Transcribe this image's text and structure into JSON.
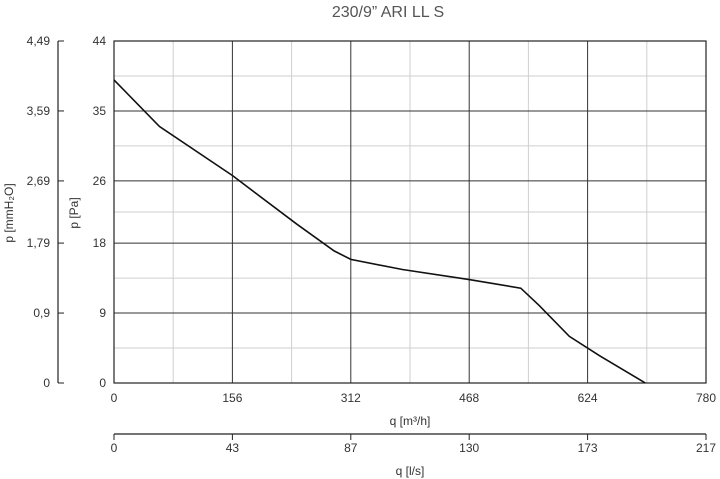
{
  "chart_data": {
    "type": "line",
    "title": "230/9” ARI LL S",
    "xlabel": "q [m³/h]",
    "x2label": "q [l/s]",
    "ylabel": "p [Pa]",
    "y2label": "p [mmH₂O]",
    "xlim": [
      0,
      780
    ],
    "ylim": [
      0,
      44
    ],
    "x_ticks": [
      "0",
      "156",
      "312",
      "468",
      "624",
      "780"
    ],
    "x_tick_values": [
      0,
      156,
      312,
      468,
      624,
      780
    ],
    "x2_ticks": [
      "0",
      "43",
      "87",
      "130",
      "173",
      "217"
    ],
    "y_ticks": [
      "0",
      "9",
      "18",
      "26",
      "35",
      "44"
    ],
    "y_tick_values": [
      0,
      9,
      18,
      26,
      35,
      44
    ],
    "y2_ticks": [
      "0",
      "0,9",
      "1,79",
      "2,69",
      "3,59",
      "4,49"
    ],
    "grid": true,
    "series": [
      {
        "name": "",
        "x": [
          0,
          60,
          156,
          240,
          290,
          312,
          380,
          468,
          536,
          560,
          600,
          640,
          700
        ],
        "y": [
          39,
          33,
          26.7,
          20.5,
          17,
          15.9,
          14.6,
          13.3,
          12.2,
          10,
          6,
          3.5,
          0
        ]
      }
    ]
  }
}
